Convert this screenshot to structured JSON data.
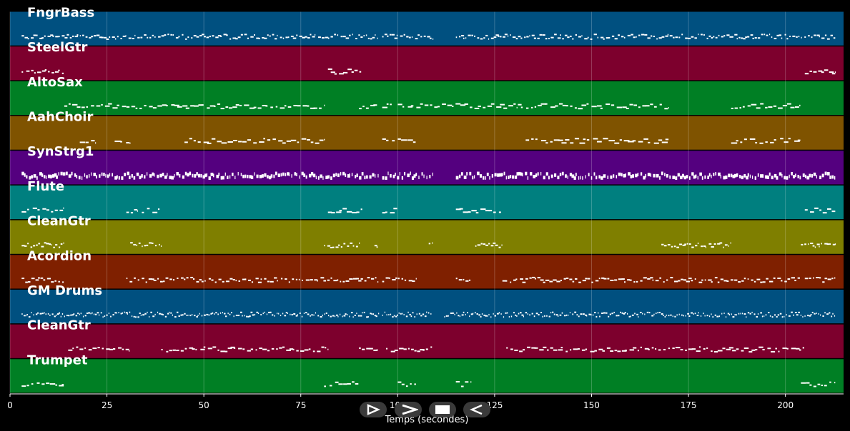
{
  "chart_data": {
    "type": "piano-roll",
    "xlabel": "Temps (secondes)",
    "xlim": [
      0,
      215
    ],
    "xticks": [
      0,
      25,
      50,
      75,
      100,
      125,
      150,
      175,
      200
    ],
    "grid": true,
    "tracks": [
      {
        "name": "FngrBass",
        "color": "#005080",
        "density": 1.4,
        "thickness": 0.12,
        "segments": [
          [
            3,
            95
          ],
          [
            96,
            109
          ],
          [
            115,
            213
          ]
        ]
      },
      {
        "name": "SteelGtr",
        "color": "#7d002d",
        "density": 1.0,
        "thickness": 0.12,
        "segments": [
          [
            3,
            14
          ],
          [
            82,
            91
          ],
          [
            205,
            213
          ]
        ]
      },
      {
        "name": "AltoSax",
        "color": "#007f24",
        "density": 0.9,
        "thickness": 0.12,
        "segments": [
          [
            14,
            81
          ],
          [
            90,
            95
          ],
          [
            96,
            99
          ],
          [
            100,
            131
          ],
          [
            131,
            170
          ],
          [
            186,
            204
          ]
        ]
      },
      {
        "name": "AahChoir",
        "color": "#7f5300",
        "density": 0.8,
        "thickness": 0.12,
        "segments": [
          [
            18,
            22
          ],
          [
            27,
            31
          ],
          [
            45,
            81
          ],
          [
            96,
            100
          ],
          [
            100,
            105
          ],
          [
            133,
            170
          ],
          [
            186,
            204
          ]
        ]
      },
      {
        "name": "SynStrg1",
        "color": "#54007f",
        "density": 1.6,
        "thickness": 0.4,
        "segments": [
          [
            3,
            95
          ],
          [
            96,
            109
          ],
          [
            115,
            213
          ]
        ]
      },
      {
        "name": "Flute",
        "color": "#007f7f",
        "density": 0.9,
        "thickness": 0.1,
        "segments": [
          [
            3,
            14
          ],
          [
            30,
            33
          ],
          [
            34,
            39
          ],
          [
            82,
            91
          ],
          [
            96,
            100
          ],
          [
            115,
            119
          ],
          [
            119,
            127
          ],
          [
            205,
            213
          ]
        ]
      },
      {
        "name": "CleanGtr",
        "color": "#7f7f00",
        "density": 1.4,
        "thickness": 0.16,
        "segments": [
          [
            3,
            14
          ],
          [
            31,
            39
          ],
          [
            81,
            90
          ],
          [
            94,
            95
          ],
          [
            108,
            109
          ],
          [
            120,
            127
          ],
          [
            168,
            186
          ],
          [
            204,
            213
          ]
        ]
      },
      {
        "name": "Acordion",
        "color": "#7f2000",
        "density": 1.2,
        "thickness": 0.16,
        "segments": [
          [
            3,
            14
          ],
          [
            30,
            95
          ],
          [
            96,
            100
          ],
          [
            100,
            105
          ],
          [
            115,
            119
          ],
          [
            127,
            204
          ],
          [
            205,
            213
          ]
        ]
      },
      {
        "name": "GM Drums",
        "color": "#005080",
        "density": 2.0,
        "thickness": 0.1,
        "segments": [
          [
            3,
            6
          ],
          [
            6,
            95
          ],
          [
            96,
            109
          ],
          [
            112,
            213
          ]
        ]
      },
      {
        "name": "CleanGtr",
        "color": "#7d002d",
        "density": 1.0,
        "thickness": 0.12,
        "segments": [
          [
            15,
            31
          ],
          [
            39,
            82
          ],
          [
            90,
            95
          ],
          [
            97,
            109
          ],
          [
            128,
            205
          ]
        ]
      },
      {
        "name": "Trumpet",
        "color": "#007f24",
        "density": 0.9,
        "thickness": 0.12,
        "segments": [
          [
            3,
            14
          ],
          [
            81,
            90
          ],
          [
            100,
            105
          ],
          [
            115,
            119
          ],
          [
            204,
            213
          ]
        ]
      }
    ]
  },
  "controls": [
    {
      "name": "play-button",
      "icon": "play-outline-icon"
    },
    {
      "name": "forward-button",
      "icon": "forward-chevron-icon"
    },
    {
      "name": "stop-button",
      "icon": "stop-icon"
    },
    {
      "name": "rewind-button",
      "icon": "rewind-outline-icon"
    }
  ]
}
